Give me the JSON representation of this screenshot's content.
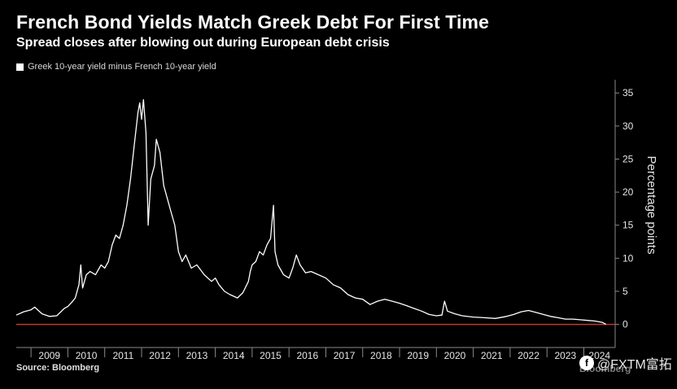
{
  "title": "French Bond Yields Match Greek Debt For First Time",
  "subtitle": "Spread closes after blowing out during European debt crisis",
  "source": "Source: Bloomberg",
  "brand": "Bloomberg",
  "watermark": "@FXTM富拓",
  "chart_data": {
    "type": "line",
    "series": [
      {
        "name": "Greek 10-year yield minus French 10-year yield",
        "color": "#ffffff",
        "points": [
          [
            2008.6,
            1.4
          ],
          [
            2008.8,
            1.9
          ],
          [
            2009.0,
            2.2
          ],
          [
            2009.1,
            2.6
          ],
          [
            2009.3,
            1.6
          ],
          [
            2009.5,
            1.2
          ],
          [
            2009.7,
            1.3
          ],
          [
            2009.9,
            2.4
          ],
          [
            2010.0,
            2.7
          ],
          [
            2010.1,
            3.3
          ],
          [
            2010.2,
            4.0
          ],
          [
            2010.3,
            6.0
          ],
          [
            2010.35,
            9.0
          ],
          [
            2010.4,
            5.5
          ],
          [
            2010.5,
            7.5
          ],
          [
            2010.6,
            8.0
          ],
          [
            2010.75,
            7.5
          ],
          [
            2010.9,
            9.0
          ],
          [
            2011.0,
            8.5
          ],
          [
            2011.1,
            9.5
          ],
          [
            2011.2,
            12.0
          ],
          [
            2011.3,
            13.5
          ],
          [
            2011.4,
            13.0
          ],
          [
            2011.5,
            15.0
          ],
          [
            2011.6,
            18.0
          ],
          [
            2011.7,
            22.0
          ],
          [
            2011.8,
            27.0
          ],
          [
            2011.9,
            32.0
          ],
          [
            2011.95,
            33.5
          ],
          [
            2012.0,
            31.0
          ],
          [
            2012.05,
            34.0
          ],
          [
            2012.12,
            29.0
          ],
          [
            2012.18,
            15.0
          ],
          [
            2012.25,
            22.0
          ],
          [
            2012.35,
            24.0
          ],
          [
            2012.4,
            28.0
          ],
          [
            2012.5,
            26.0
          ],
          [
            2012.6,
            21.0
          ],
          [
            2012.7,
            19.0
          ],
          [
            2012.8,
            17.0
          ],
          [
            2012.9,
            15.0
          ],
          [
            2013.0,
            11.0
          ],
          [
            2013.1,
            9.5
          ],
          [
            2013.2,
            10.5
          ],
          [
            2013.35,
            8.5
          ],
          [
            2013.5,
            9.0
          ],
          [
            2013.7,
            7.5
          ],
          [
            2013.9,
            6.5
          ],
          [
            2014.0,
            7.0
          ],
          [
            2014.1,
            6.0
          ],
          [
            2014.25,
            5.0
          ],
          [
            2014.4,
            4.5
          ],
          [
            2014.6,
            4.0
          ],
          [
            2014.75,
            4.8
          ],
          [
            2014.9,
            6.5
          ],
          [
            2014.95,
            8.0
          ],
          [
            2015.0,
            9.0
          ],
          [
            2015.1,
            9.5
          ],
          [
            2015.2,
            11.0
          ],
          [
            2015.3,
            10.5
          ],
          [
            2015.4,
            12.0
          ],
          [
            2015.5,
            13.0
          ],
          [
            2015.58,
            18.0
          ],
          [
            2015.62,
            11.0
          ],
          [
            2015.7,
            9.0
          ],
          [
            2015.85,
            7.5
          ],
          [
            2016.0,
            7.0
          ],
          [
            2016.1,
            8.5
          ],
          [
            2016.2,
            10.5
          ],
          [
            2016.3,
            9.0
          ],
          [
            2016.45,
            7.8
          ],
          [
            2016.6,
            8.0
          ],
          [
            2016.8,
            7.5
          ],
          [
            2017.0,
            7.0
          ],
          [
            2017.2,
            6.0
          ],
          [
            2017.4,
            5.5
          ],
          [
            2017.6,
            4.5
          ],
          [
            2017.8,
            4.0
          ],
          [
            2018.0,
            3.8
          ],
          [
            2018.2,
            3.0
          ],
          [
            2018.4,
            3.5
          ],
          [
            2018.6,
            3.8
          ],
          [
            2018.8,
            3.5
          ],
          [
            2019.0,
            3.2
          ],
          [
            2019.2,
            2.8
          ],
          [
            2019.4,
            2.4
          ],
          [
            2019.6,
            2.0
          ],
          [
            2019.8,
            1.5
          ],
          [
            2020.0,
            1.3
          ],
          [
            2020.15,
            1.4
          ],
          [
            2020.22,
            3.5
          ],
          [
            2020.3,
            2.0
          ],
          [
            2020.5,
            1.6
          ],
          [
            2020.7,
            1.3
          ],
          [
            2021.0,
            1.1
          ],
          [
            2021.3,
            1.0
          ],
          [
            2021.6,
            0.9
          ],
          [
            2021.9,
            1.2
          ],
          [
            2022.1,
            1.5
          ],
          [
            2022.3,
            1.9
          ],
          [
            2022.5,
            2.1
          ],
          [
            2022.7,
            1.8
          ],
          [
            2022.9,
            1.5
          ],
          [
            2023.1,
            1.2
          ],
          [
            2023.3,
            1.0
          ],
          [
            2023.5,
            0.8
          ],
          [
            2023.7,
            0.8
          ],
          [
            2023.9,
            0.7
          ],
          [
            2024.1,
            0.6
          ],
          [
            2024.3,
            0.5
          ],
          [
            2024.5,
            0.3
          ],
          [
            2024.6,
            0.0
          ]
        ]
      }
    ],
    "zero_line_color": "#c0392b",
    "ylabel": "Percentage points",
    "y_ticks": [
      0,
      5,
      10,
      15,
      20,
      25,
      30,
      35
    ],
    "ylim": [
      -3.5,
      37
    ],
    "x_labels": [
      "2009",
      "2010",
      "2011",
      "2012",
      "2013",
      "2014",
      "2015",
      "2016",
      "2017",
      "2018",
      "2019",
      "2020",
      "2021",
      "2022",
      "2023",
      "2024"
    ],
    "xlim": [
      2008.6,
      2024.85
    ],
    "y_axis_side": "right",
    "grid": false,
    "legend": "top-left"
  }
}
